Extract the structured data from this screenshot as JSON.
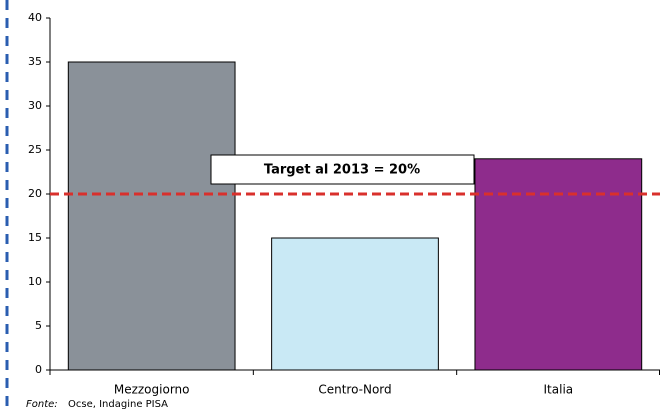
{
  "chart_data": {
    "type": "bar",
    "categories": [
      "Mezzogiorno",
      "Centro-Nord",
      "Italia"
    ],
    "values": [
      35,
      15,
      24
    ],
    "colors": [
      "#8a9199",
      "#c9e9f5",
      "#8e2c8c"
    ],
    "ylim": [
      0,
      40
    ],
    "yticks": [
      0,
      5,
      10,
      15,
      20,
      25,
      30,
      35,
      40
    ],
    "grid": false,
    "target": {
      "value": 20,
      "label": "Target al 2013 = 20%",
      "color": "#d9302c"
    },
    "source_label": "Fonte:",
    "source": "Ocse, Indagine PISA"
  }
}
